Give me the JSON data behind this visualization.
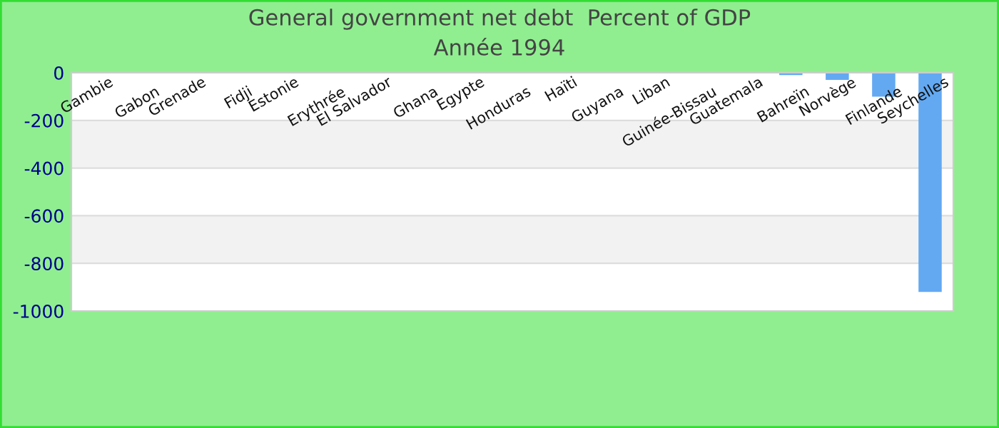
{
  "chart_data": {
    "type": "bar",
    "title": "General government net debt  Percent of GDP",
    "subtitle": "Année 1994",
    "categories": [
      "Gambie",
      "Gabon",
      "Grenade",
      "Fidji",
      "Estonie",
      "Erythrée",
      "El Salvador",
      "Ghana",
      "Egypte",
      "Honduras",
      "Haïti",
      "Guyana",
      "Liban",
      "Guinée-Bissau",
      "Guatemala",
      "Bahreïn",
      "Norvège",
      "Finlande",
      "Seychelles"
    ],
    "values": [
      0,
      0,
      0,
      0,
      0,
      0,
      0,
      0,
      0,
      0,
      0,
      0,
      0,
      0,
      0,
      -10,
      -30,
      -100,
      -920
    ],
    "color": "#63a9f2",
    "ylim": [
      -1000,
      0
    ],
    "yticks": [
      -1000,
      -800,
      -600,
      -400,
      -200,
      0
    ],
    "grid": "y"
  }
}
